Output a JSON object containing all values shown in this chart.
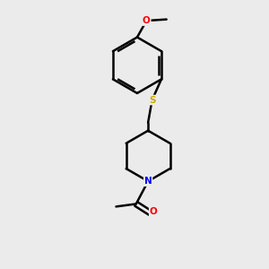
{
  "background_color": "#ebebeb",
  "bond_color": "#000000",
  "atom_colors": {
    "O": "#ff0000",
    "S": "#ccaa00",
    "N": "#0000ff",
    "C": "#000000"
  },
  "figsize": [
    3.0,
    3.0
  ],
  "dpi": 100,
  "xlim": [
    0,
    10
  ],
  "ylim": [
    0,
    10
  ]
}
